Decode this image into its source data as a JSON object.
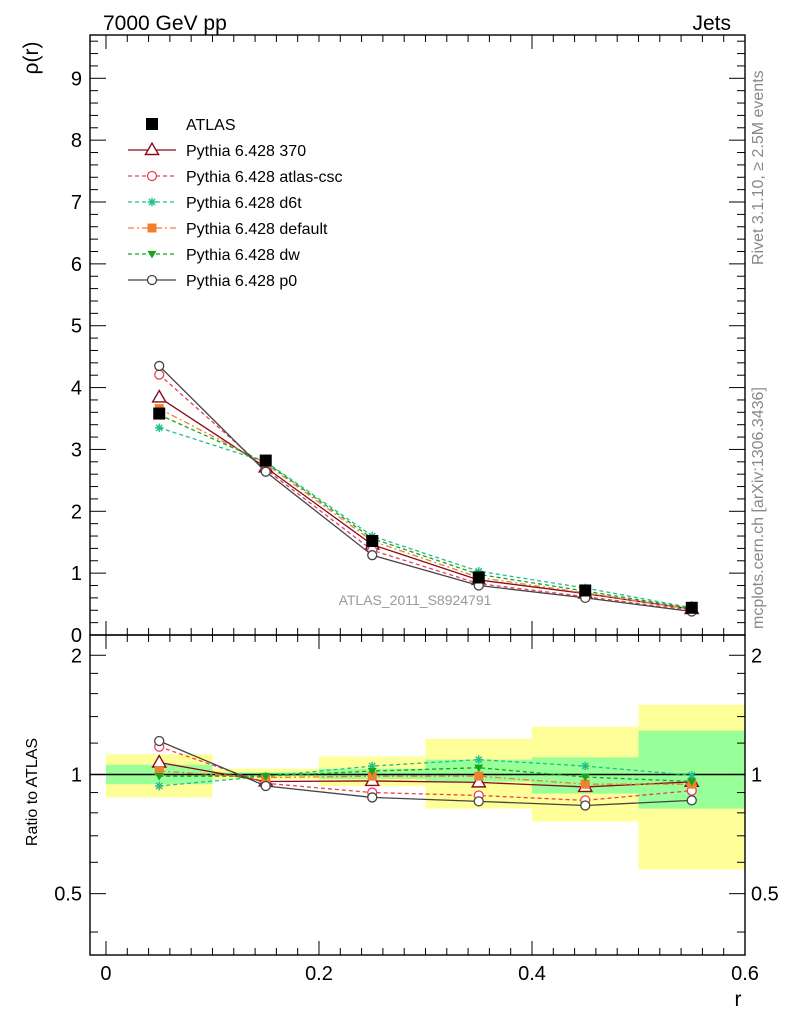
{
  "header": {
    "left": "7000 GeV pp",
    "right": "Jets"
  },
  "side_labels": {
    "rivet": "Rivet 3.1.10, ≥ 2.5M events",
    "mcplots": "mcplots.cern.ch [arXiv:1306.3436]"
  },
  "watermark": "ATLAS_2011_S8924791",
  "chart_data": [
    {
      "type": "line",
      "panel": "main",
      "ylabel": "ρ(r)",
      "xlabel": "",
      "xlim": [
        -0.015,
        0.6
      ],
      "ylim": [
        0,
        9.7
      ],
      "xticks": [
        0,
        0.2,
        0.4,
        0.6
      ],
      "yticks": [
        0,
        1,
        2,
        3,
        4,
        5,
        6,
        7,
        8,
        9
      ],
      "x": [
        0.05,
        0.15,
        0.25,
        0.35,
        0.45,
        0.55
      ],
      "series": [
        {
          "name": "ATLAS",
          "color": "#000000",
          "marker": "square-filled",
          "dash": "none",
          "values": [
            3.58,
            2.82,
            1.52,
            0.93,
            0.72,
            0.44
          ]
        },
        {
          "name": "Pythia 6.428 370",
          "color": "#8B0A1E",
          "marker": "triangle-open",
          "dash": "none",
          "values": [
            3.84,
            2.71,
            1.46,
            0.89,
            0.67,
            0.42
          ]
        },
        {
          "name": "Pythia 6.428 atlas-csc",
          "color": "#E8405A",
          "marker": "circle-open",
          "dash": "4,3",
          "values": [
            4.21,
            2.68,
            1.37,
            0.83,
            0.62,
            0.4
          ]
        },
        {
          "name": "Pythia 6.428 d6t",
          "color": "#1FC08A",
          "marker": "asterisk",
          "dash": "4,3",
          "values": [
            3.35,
            2.8,
            1.6,
            1.03,
            0.76,
            0.44
          ]
        },
        {
          "name": "Pythia 6.428 default",
          "color": "#F07F30",
          "marker": "square-filled",
          "dash": "6,3,2,3",
          "values": [
            3.66,
            2.77,
            1.52,
            0.93,
            0.68,
            0.42
          ]
        },
        {
          "name": "Pythia 6.428 dw",
          "color": "#16A51E",
          "marker": "triangle-down-filled",
          "dash": "4,3",
          "values": [
            3.56,
            2.79,
            1.56,
            0.98,
            0.71,
            0.43
          ]
        },
        {
          "name": "Pythia 6.428 p0",
          "color": "#444444",
          "marker": "circle-open",
          "dash": "none",
          "values": [
            4.35,
            2.64,
            1.29,
            0.8,
            0.6,
            0.38
          ]
        }
      ]
    },
    {
      "type": "line",
      "panel": "ratio",
      "ylabel": "Ratio to ATLAS",
      "xlabel": "r",
      "xlim": [
        -0.015,
        0.6
      ],
      "ylim": [
        0.35,
        2.25
      ],
      "xticks": [
        0,
        0.2,
        0.4,
        0.6
      ],
      "yticks": [
        0.5,
        1,
        2
      ],
      "bands": {
        "bins": [
          [
            0,
            0.1
          ],
          [
            0.1,
            0.2
          ],
          [
            0.2,
            0.3
          ],
          [
            0.3,
            0.4
          ],
          [
            0.4,
            0.5
          ],
          [
            0.5,
            0.6
          ]
        ],
        "inner": [
          [
            0.945,
            1.058
          ],
          [
            0.99,
            1.012
          ],
          [
            0.973,
            1.033
          ],
          [
            0.96,
            1.09
          ],
          [
            0.895,
            1.105
          ],
          [
            0.82,
            1.29
          ]
        ],
        "outer": [
          [
            0.875,
            1.125
          ],
          [
            0.97,
            1.035
          ],
          [
            0.935,
            1.11
          ],
          [
            0.82,
            1.23
          ],
          [
            0.76,
            1.32
          ],
          [
            0.575,
            1.5
          ]
        ],
        "inner_color": "#99FF99",
        "outer_color": "#FFFF99"
      },
      "x": [
        0.05,
        0.15,
        0.25,
        0.35,
        0.45,
        0.55
      ],
      "series": [
        {
          "name": "Pythia 6.428 370",
          "color": "#8B0A1E",
          "marker": "triangle-open",
          "dash": "none",
          "values": [
            1.072,
            0.96,
            0.963,
            0.955,
            0.93,
            0.958
          ]
        },
        {
          "name": "Pythia 6.428 atlas-csc",
          "color": "#E8405A",
          "marker": "circle-open",
          "dash": "4,3",
          "values": [
            1.175,
            0.95,
            0.9,
            0.885,
            0.86,
            0.91
          ]
        },
        {
          "name": "Pythia 6.428 d6t",
          "color": "#1FC08A",
          "marker": "asterisk",
          "dash": "4,3",
          "values": [
            0.935,
            0.99,
            1.05,
            1.09,
            1.05,
            0.995
          ]
        },
        {
          "name": "Pythia 6.428 default",
          "color": "#F07F30",
          "marker": "square-filled",
          "dash": "6,3,2,3",
          "values": [
            1.02,
            0.982,
            0.99,
            0.99,
            0.945,
            0.945
          ]
        },
        {
          "name": "Pythia 6.428 dw",
          "color": "#16A51E",
          "marker": "triangle-down-filled",
          "dash": "4,3",
          "values": [
            0.99,
            0.99,
            1.02,
            1.04,
            0.985,
            0.96
          ]
        },
        {
          "name": "Pythia 6.428 p0",
          "color": "#444444",
          "marker": "circle-open",
          "dash": "none",
          "values": [
            1.215,
            0.935,
            0.875,
            0.855,
            0.835,
            0.86
          ]
        }
      ]
    }
  ]
}
